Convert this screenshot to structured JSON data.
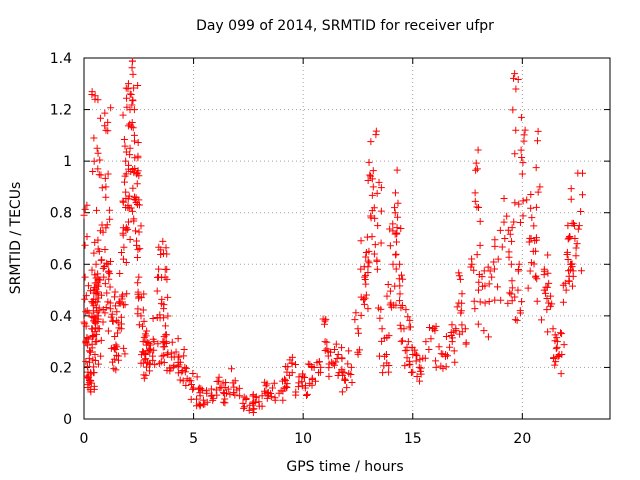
{
  "chart_data": {
    "type": "scatter",
    "title": "Day 099 of 2014, SRMTID for receiver ufpr",
    "xlabel": "GPS time / hours",
    "ylabel": "SRMTID / TECUs",
    "xlim": [
      0,
      24
    ],
    "ylim": [
      0,
      1.4
    ],
    "xticks": [
      0,
      5,
      10,
      15,
      20
    ],
    "xtick_labels": [
      "0",
      "5",
      "10",
      "15",
      "20"
    ],
    "yticks": [
      0,
      0.2,
      0.4,
      0.6,
      0.8,
      1.0,
      1.2,
      1.4
    ],
    "ytick_labels": [
      "0",
      "0.2",
      "0.4",
      "0.6",
      "0.8",
      "1",
      "1.2",
      "1.4"
    ],
    "grid": true,
    "marker": "+",
    "color": "#ff0000",
    "series": [
      {
        "name": "SRMTID",
        "x": [
          0.0,
          0.05,
          0.1,
          0.15,
          0.2,
          0.25,
          0.3,
          0.35,
          0.4,
          0.45,
          0.5,
          0.55,
          0.6,
          0.65,
          0.7,
          0.75,
          0.8,
          0.9,
          1.0,
          1.1,
          1.2,
          1.3,
          1.4,
          1.5,
          1.6,
          1.7,
          1.8,
          1.9,
          2.0,
          2.1,
          2.2,
          2.3,
          2.4,
          2.5,
          2.6,
          2.7,
          2.8,
          2.9,
          3.0,
          3.2,
          3.4,
          3.6,
          3.8,
          4.0,
          4.2,
          4.4,
          4.6,
          4.8,
          5.0,
          5.3,
          5.6,
          5.9,
          6.2,
          6.5,
          6.8,
          7.1,
          7.4,
          7.7,
          8.0,
          8.3,
          8.6,
          8.9,
          9.2,
          9.5,
          9.8,
          10.1,
          10.4,
          10.7,
          11.0,
          11.3,
          11.6,
          11.9,
          12.2,
          12.5,
          12.8,
          13.0,
          13.2,
          13.4,
          13.6,
          13.8,
          14.0,
          14.2,
          14.4,
          14.6,
          14.8,
          15.0,
          15.3,
          15.6,
          15.9,
          16.2,
          16.5,
          16.8,
          17.1,
          17.4,
          17.7,
          18.0,
          18.3,
          18.6,
          18.9,
          19.2,
          19.5,
          19.8,
          20.0,
          20.2,
          20.4,
          20.6,
          20.8,
          21.0,
          21.2,
          21.4,
          21.6,
          21.8,
          22.0,
          22.2,
          22.4,
          22.6,
          0.3,
          0.5,
          0.7,
          1.1,
          1.9,
          2.1,
          2.3,
          2.5,
          0.6,
          2.35,
          13.1,
          14.1,
          19.7,
          20.5,
          3.7,
          18.0,
          22.5
        ],
        "y": [
          0.79,
          0.55,
          0.36,
          0.42,
          0.31,
          0.22,
          0.18,
          0.35,
          0.45,
          0.5,
          1.24,
          0.6,
          0.52,
          0.4,
          0.65,
          0.73,
          0.48,
          0.55,
          0.9,
          0.6,
          0.45,
          0.38,
          0.32,
          0.28,
          0.45,
          0.35,
          0.62,
          1.0,
          0.82,
          1.05,
          1.15,
          1.2,
          0.95,
          0.55,
          0.4,
          0.3,
          0.25,
          0.22,
          0.26,
          0.3,
          0.55,
          0.3,
          0.25,
          0.24,
          0.26,
          0.22,
          0.2,
          0.15,
          0.12,
          0.09,
          0.1,
          0.08,
          0.12,
          0.1,
          0.14,
          0.09,
          0.08,
          0.06,
          0.05,
          0.1,
          0.12,
          0.1,
          0.15,
          0.18,
          0.14,
          0.12,
          0.2,
          0.18,
          0.3,
          0.22,
          0.25,
          0.15,
          0.2,
          0.35,
          0.55,
          0.65,
          0.9,
          0.75,
          0.35,
          0.25,
          0.45,
          0.8,
          0.6,
          0.35,
          0.3,
          0.25,
          0.2,
          0.3,
          0.35,
          0.28,
          0.25,
          0.3,
          0.45,
          0.35,
          0.6,
          0.5,
          0.45,
          0.55,
          0.62,
          0.7,
          0.6,
          0.5,
          0.95,
          0.85,
          0.7,
          0.55,
          0.9,
          0.5,
          0.45,
          0.35,
          0.3,
          0.25,
          0.5,
          0.6,
          0.7,
          0.75,
          0.15,
          0.25,
          0.35,
          0.95,
          0.88,
          1.2,
          1.1,
          0.85,
          1.05,
          0.85,
          0.78,
          0.6,
          1.12,
          0.65,
          0.55,
          0.82,
          0.68
        ],
        "extra_scatter_seed": 99
      }
    ]
  }
}
